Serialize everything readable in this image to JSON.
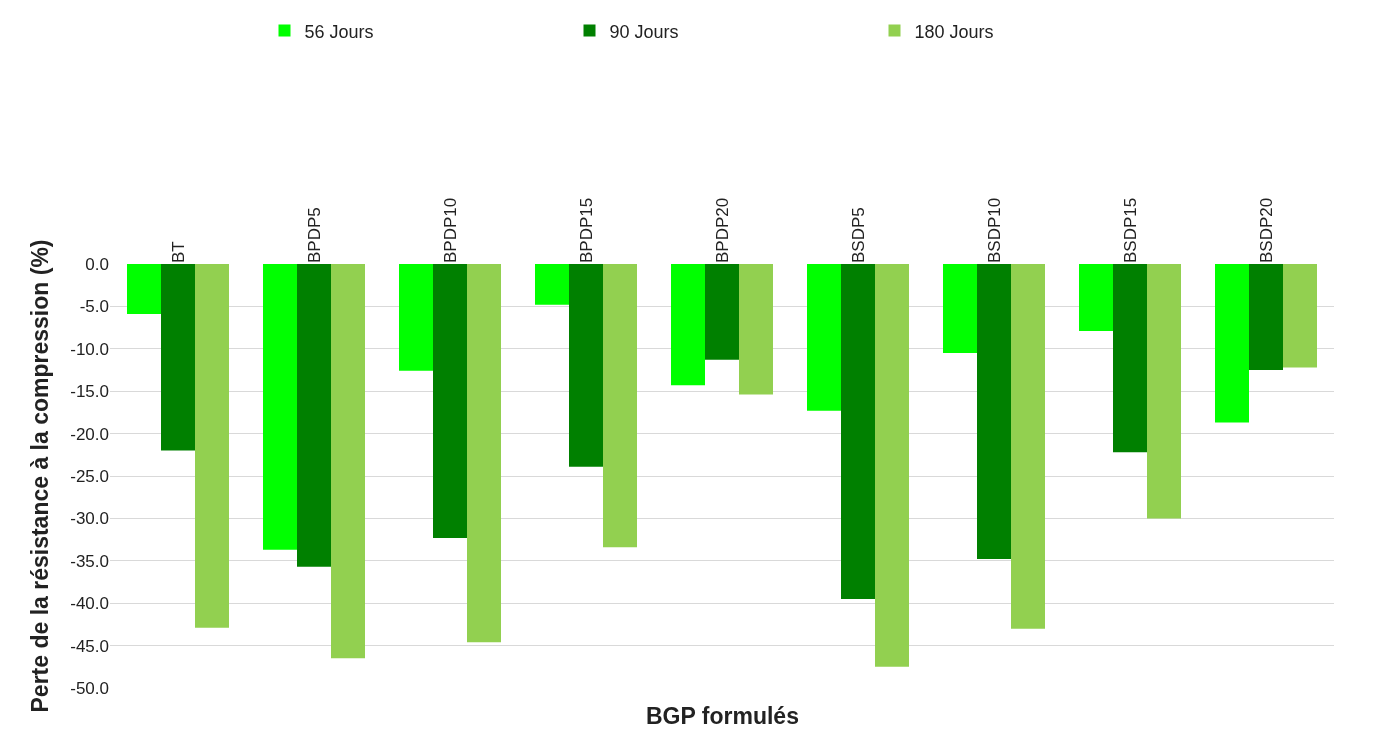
{
  "chart_data": {
    "type": "bar",
    "xlabel": "BGP formulés",
    "ylabel": "Perte de la résistance à la compression (%)",
    "categories": [
      "BT",
      "BPDP5",
      "BPDP10",
      "BPDP15",
      "BPDP20",
      "BSDP5",
      "BSDP10",
      "BSDP15",
      "BSDP20"
    ],
    "series": [
      {
        "name": "56 Jours",
        "color": "#00ff00",
        "values": [
          -5.9,
          -33.7,
          -12.6,
          -4.8,
          -14.3,
          -17.3,
          -10.5,
          -7.9,
          -18.7
        ]
      },
      {
        "name": "90 Jours",
        "color": "#008000",
        "values": [
          -22.0,
          -35.7,
          -32.3,
          -23.9,
          -11.3,
          -39.5,
          -34.8,
          -22.2,
          -12.5
        ]
      },
      {
        "name": "180 Jours",
        "color": "#92d050",
        "values": [
          -42.9,
          -46.5,
          -44.6,
          -33.4,
          -15.4,
          -47.5,
          -43.0,
          -30.0,
          -12.2
        ]
      }
    ],
    "ylim": [
      -50,
      0
    ],
    "yticks": [
      {
        "value": 0,
        "label": "0.0"
      },
      {
        "value": -5,
        "label": "-5.0"
      },
      {
        "value": -10,
        "label": "-10.0"
      },
      {
        "value": -15,
        "label": "-15.0"
      },
      {
        "value": -20,
        "label": "-20.0"
      },
      {
        "value": -25,
        "label": "-25.0"
      },
      {
        "value": -30,
        "label": "-30.0"
      },
      {
        "value": -35,
        "label": "-35.0"
      },
      {
        "value": -40,
        "label": "-40.0"
      },
      {
        "value": -45,
        "label": "-45.0"
      },
      {
        "value": -50,
        "label": "-50.0"
      }
    ],
    "grid": "y",
    "legend": "top"
  }
}
